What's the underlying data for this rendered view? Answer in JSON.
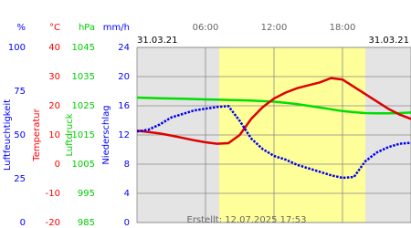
{
  "chart_data": {
    "type": "line",
    "dates": [
      "31.03.21",
      "31.03.21"
    ],
    "created": "Erstellt: 12.07.2025 17:53",
    "xlim": [
      0,
      24
    ],
    "xticks": [
      {
        "value": 6,
        "label": "06:00"
      },
      {
        "value": 12,
        "label": "12:00"
      },
      {
        "value": 18,
        "label": "18:00"
      }
    ],
    "daylight": [
      7.2,
      20
    ],
    "x": [
      0,
      1,
      2,
      3,
      4,
      5,
      6,
      7,
      8,
      9,
      10,
      11,
      12,
      13,
      14,
      15,
      16,
      17,
      18,
      19,
      20,
      21,
      22,
      23,
      24
    ],
    "y_axes": [
      {
        "unit": "%",
        "title": "Luftfeuchtigkeit",
        "color": "#0000ff",
        "ylim": [
          0,
          100
        ],
        "yticks": [
          100,
          75,
          50,
          25,
          0
        ]
      },
      {
        "unit": "°C",
        "title": "Temperatur",
        "color": "#ff0000",
        "ylim": [
          -20,
          40
        ],
        "yticks": [
          40,
          30,
          20,
          10,
          0,
          -10,
          -20
        ]
      },
      {
        "unit": "hPa",
        "title": "Luftdruck",
        "color": "#00cc00",
        "ylim": [
          985,
          1045
        ],
        "yticks": [
          1045,
          1035,
          1025,
          1015,
          1005,
          995,
          985
        ]
      },
      {
        "unit": "mm/h",
        "title": "Niederschlag",
        "color": "#0000ff",
        "ylim": [
          0,
          24
        ],
        "yticks": [
          24,
          20,
          16,
          12,
          8,
          4,
          0
        ]
      }
    ],
    "series": [
      {
        "axis": 2,
        "color": "#00dd00",
        "values": [
          1027.8,
          1027.7,
          1027.6,
          1027.5,
          1027.4,
          1027.3,
          1027.2,
          1027.1,
          1027,
          1026.9,
          1026.8,
          1026.6,
          1026.4,
          1026,
          1025.6,
          1025,
          1024.4,
          1023.8,
          1023.2,
          1022.8,
          1022.5,
          1022.4,
          1022.4,
          1022.5,
          1022.7
        ]
      },
      {
        "axis": 1,
        "color": "#dd0000",
        "values": [
          11.5,
          11,
          10.5,
          9.8,
          9,
          8.2,
          7.5,
          7,
          7.2,
          10,
          15.5,
          19.5,
          22.5,
          24.5,
          26,
          27,
          28,
          29.5,
          29,
          26.5,
          24,
          21.5,
          19,
          17,
          15.5
        ]
      },
      {
        "axis": 0,
        "color": "#0000ee",
        "values": [
          52,
          53,
          56,
          60,
          62,
          64,
          65,
          66,
          66.5,
          58,
          48,
          42,
          38,
          36,
          33,
          31,
          29,
          27,
          25.5,
          26,
          35,
          40,
          43,
          45,
          45.5
        ]
      }
    ]
  }
}
